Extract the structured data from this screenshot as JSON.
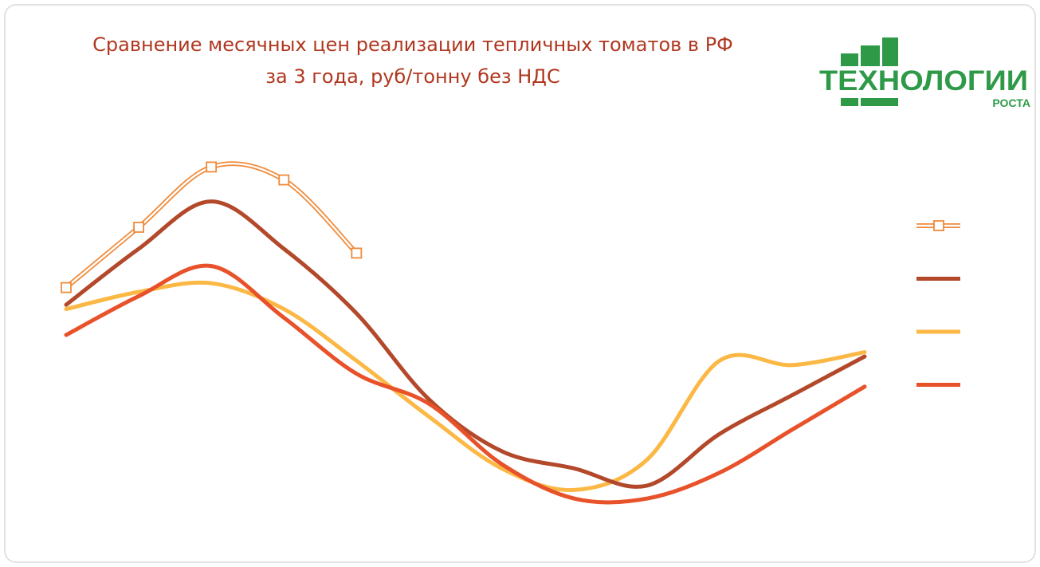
{
  "chart_data": {
    "type": "line",
    "title": [
      "Сравнение месячных цен реализации тепличных томатов в РФ",
      "за 3 года, руб/тонну без НДС"
    ],
    "logo": {
      "name": "ТЕХНОЛОГИИ",
      "tagline": "РОСТА"
    },
    "categories": [
      null,
      null,
      null,
      null,
      null,
      null,
      null,
      null,
      null,
      null,
      null,
      null
    ],
    "ylim": [
      0,
      100
    ],
    "legend": "right",
    "series": [
      {
        "color": "#ef8a3a",
        "style": "double",
        "marker": "square",
        "values": [
          61,
          75,
          89,
          86,
          69,
          null,
          null,
          null,
          null,
          null,
          null,
          null
        ]
      },
      {
        "color": "#b3482a",
        "values": [
          57,
          70,
          81,
          70,
          55,
          35,
          23,
          19,
          15,
          27,
          36,
          45
        ]
      },
      {
        "color": "#fbb845",
        "values": [
          56,
          60,
          62,
          56,
          44,
          31,
          19,
          14,
          21,
          44,
          43,
          46
        ]
      },
      {
        "color": "#e8522a",
        "values": [
          50,
          59,
          66,
          54,
          41,
          34,
          20,
          12,
          12,
          18,
          28,
          38
        ]
      }
    ]
  }
}
